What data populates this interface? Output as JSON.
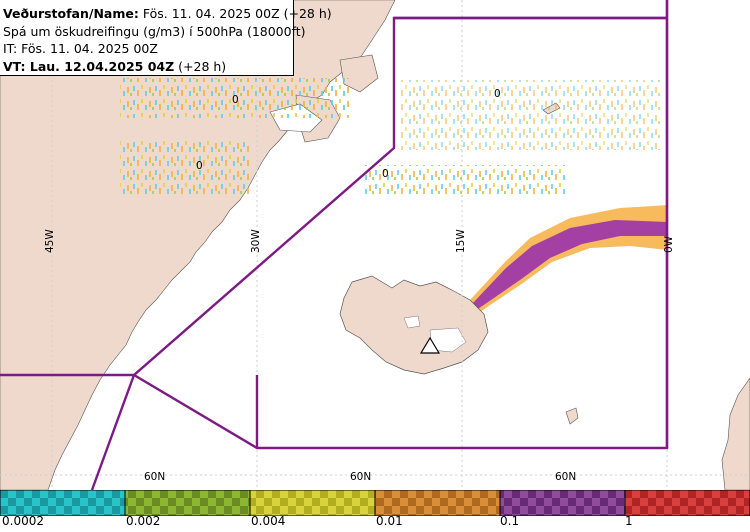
{
  "header": {
    "line1_label": "Veðurstofan/Name:",
    "line1_value": "Fös. 11. 04. 2025 00Z (+28 h)",
    "line2": "Spá um öskudreifingu (g/m3) í 500hPa (18000ft)",
    "line3": "IT: Fös. 11. 04. 2025 00Z",
    "line4_label": "VT: Lau. 12.04.2025 04Z",
    "line4_value": "(+28 h)"
  },
  "grid_labels": {
    "lon_45": "45W",
    "lon_30": "30W",
    "lon_15": "15W",
    "lon_0": "0W",
    "lat_a": "60N",
    "lat_b": "60N",
    "lat_c": "60N"
  },
  "small_markers": [
    "0",
    "0",
    "0",
    "0"
  ],
  "color_scale": {
    "labels": [
      "0.0002",
      "0.002",
      "0.004",
      "0.01",
      "0.1",
      "1"
    ],
    "colors": [
      "#29c4c8",
      "#7ea62a",
      "#c9c32a",
      "#c87d2a",
      "#7b3a87",
      "#c83232"
    ]
  },
  "colors": {
    "land": "#efd9cc",
    "sea": "#ffffff",
    "boundary": "#7d1a84",
    "ash_low": "#f6b24a",
    "ash_high": "#a43fa3"
  }
}
